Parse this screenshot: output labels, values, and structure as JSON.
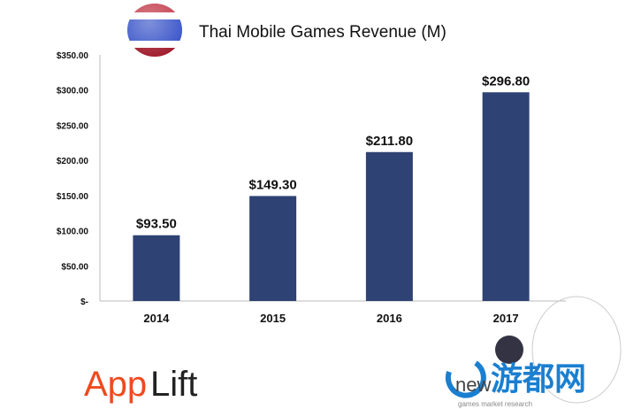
{
  "chart_data": {
    "type": "bar",
    "title": "Thai Mobile Games Revenue (M)",
    "categories": [
      "2014",
      "2015",
      "2016",
      "2017"
    ],
    "values": [
      93.5,
      149.3,
      211.8,
      296.8
    ],
    "data_labels": [
      "$93.50",
      "$149.30",
      "$211.80",
      "$296.80"
    ],
    "yticks": [
      0,
      50,
      100,
      150,
      200,
      250,
      300,
      350
    ],
    "ytick_labels": [
      "$-",
      "$50.00",
      "$100.00",
      "$150.00",
      "$200.00",
      "$250.00",
      "$300.00",
      "$350.00"
    ],
    "ylim": [
      0,
      350
    ],
    "grid": false,
    "bar_color": "#2e4273",
    "xlabel": "",
    "ylabel": ""
  },
  "logos": {
    "applift": "AppLift",
    "newzoo": "newzoo",
    "newzoo_tagline": "games market research",
    "watermark": "游都网"
  },
  "colors": {
    "applift": "#f04a1e",
    "watermark": "#1a7fd0"
  }
}
